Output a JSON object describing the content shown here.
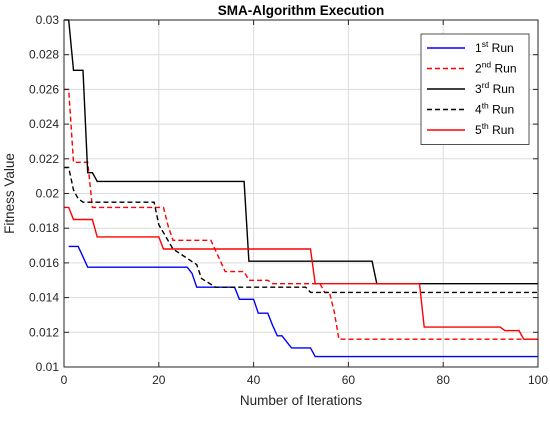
{
  "chart_data": {
    "type": "line",
    "title": "SMA-Algorithm Execution",
    "xlabel": "Number of Iterations",
    "ylabel": "Fitness Value",
    "xlim": [
      0,
      100
    ],
    "ylim": [
      0.01,
      0.03
    ],
    "xticks": [
      "0",
      "20",
      "40",
      "60",
      "80",
      "100"
    ],
    "yticks": [
      "0.01",
      "0.012",
      "0.014",
      "0.016",
      "0.018",
      "0.02",
      "0.022",
      "0.024",
      "0.026",
      "0.028",
      "0.03"
    ],
    "grid": true,
    "legend_position": "top-right",
    "series": [
      {
        "name": "1st Run",
        "ord": "1",
        "sup": "st",
        "suffix": " Run",
        "color": "#0000ff",
        "dash": "solid",
        "x": [
          1,
          3,
          4,
          5,
          26,
          27,
          28,
          36,
          37,
          38,
          40,
          41,
          43,
          44,
          45,
          46,
          48,
          49,
          50,
          51,
          52,
          53,
          100
        ],
        "y": [
          0.01695,
          0.01695,
          0.01635,
          0.01575,
          0.01575,
          0.0154,
          0.0146,
          0.0146,
          0.0139,
          0.0139,
          0.0139,
          0.0131,
          0.0131,
          0.0124,
          0.0118,
          0.0118,
          0.0111,
          0.0111,
          0.0111,
          0.0111,
          0.0111,
          0.0106,
          0.0106
        ]
      },
      {
        "name": "2nd Run",
        "ord": "2",
        "sup": "nd",
        "suffix": " Run",
        "color": "#ff0000",
        "dash": "dashed",
        "x": [
          0,
          1,
          2,
          5,
          6,
          21,
          22,
          23,
          31,
          32,
          34,
          38,
          39,
          43,
          44,
          54,
          55,
          56,
          57,
          58,
          98,
          100
        ],
        "y": [
          0.026,
          0.026,
          0.0218,
          0.0218,
          0.0192,
          0.0192,
          0.0181,
          0.0173,
          0.0173,
          0.0167,
          0.0155,
          0.0155,
          0.015,
          0.015,
          0.0148,
          0.0148,
          0.0143,
          0.0143,
          0.0132,
          0.0116,
          0.0116,
          0.0116
        ]
      },
      {
        "name": "3rd Run",
        "ord": "3",
        "sup": "rd",
        "suffix": " Run",
        "color": "#000000",
        "dash": "solid",
        "x": [
          0,
          1,
          2,
          4,
          5,
          6,
          7,
          38,
          39,
          65,
          66,
          100
        ],
        "y": [
          0.03,
          0.03,
          0.0271,
          0.0271,
          0.0212,
          0.0212,
          0.0207,
          0.0207,
          0.0161,
          0.0161,
          0.0148,
          0.0148
        ]
      },
      {
        "name": "4th Run",
        "ord": "4",
        "sup": "th",
        "suffix": " Run",
        "color": "#000000",
        "dash": "dashed",
        "x": [
          0,
          1,
          2,
          3,
          4,
          19,
          20,
          23,
          28,
          29,
          32,
          33,
          51,
          52,
          100
        ],
        "y": [
          0.0215,
          0.0215,
          0.0202,
          0.0197,
          0.0195,
          0.0195,
          0.0182,
          0.0168,
          0.0159,
          0.0151,
          0.0146,
          0.0146,
          0.0146,
          0.0143,
          0.0143
        ]
      },
      {
        "name": "5th Run",
        "ord": "5",
        "sup": "th",
        "suffix": " Run",
        "color": "#ff0000",
        "dash": "solid",
        "x": [
          0,
          1,
          2,
          6,
          7,
          20,
          21,
          27,
          52,
          53,
          75,
          76,
          92,
          93,
          96,
          97,
          100
        ],
        "y": [
          0.0192,
          0.0192,
          0.0185,
          0.0185,
          0.0175,
          0.0175,
          0.0168,
          0.0168,
          0.0168,
          0.0148,
          0.0148,
          0.0123,
          0.0123,
          0.0121,
          0.0121,
          0.0116,
          0.0116
        ]
      }
    ]
  }
}
